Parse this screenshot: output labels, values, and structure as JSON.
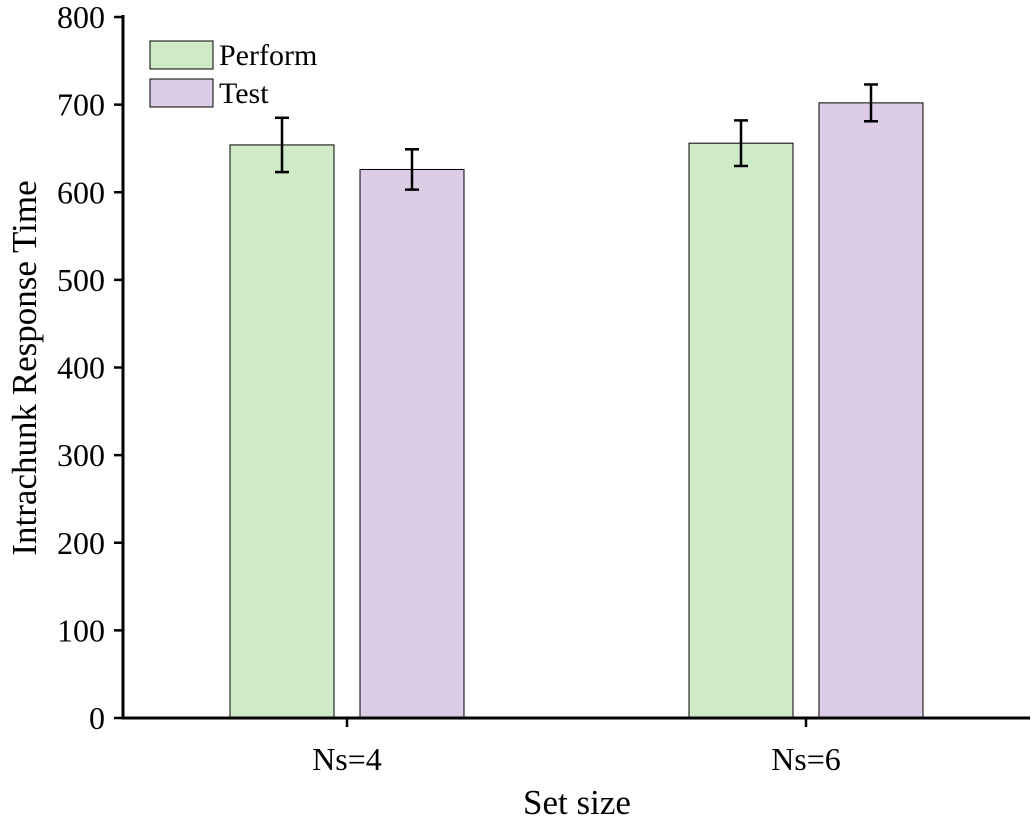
{
  "chart_data": {
    "type": "bar",
    "title": "",
    "xlabel": "Set size",
    "ylabel": "Intrachunk Response Time",
    "categories": [
      "Ns=4",
      "Ns=6"
    ],
    "ylim": [
      0,
      800
    ],
    "yticks": [
      0,
      100,
      200,
      300,
      400,
      500,
      600,
      700,
      800
    ],
    "legend_position": "top-left",
    "grid": false,
    "series": [
      {
        "name": "Perform",
        "color": "#ceeac6",
        "values": [
          654,
          656
        ],
        "error": [
          31,
          26
        ]
      },
      {
        "name": "Test",
        "color": "#ddcce6",
        "values": [
          626,
          702
        ],
        "error": [
          23,
          21
        ]
      }
    ]
  }
}
